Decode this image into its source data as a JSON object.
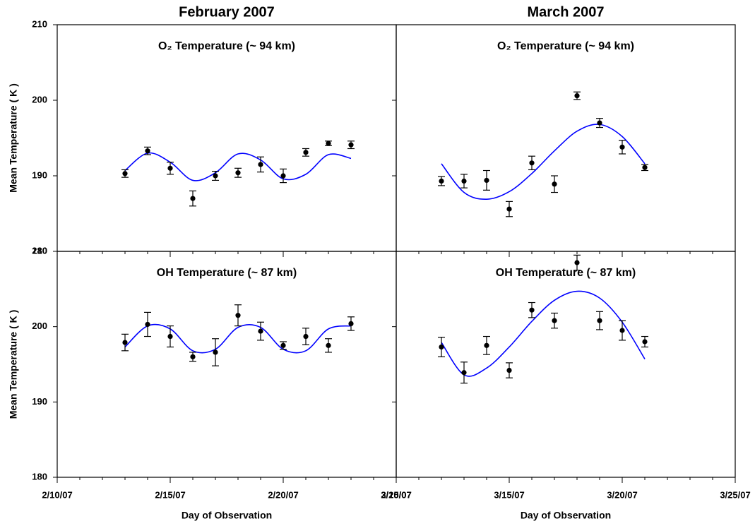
{
  "chart_data": [
    {
      "type": "scatter",
      "header": "February 2007",
      "title": "O₂ Temperature (~ 94 km)",
      "ylabel": "Mean Temperature ( K )",
      "x": [
        "2/13/07",
        "2/14/07",
        "2/15/07",
        "2/16/07",
        "2/17/07",
        "2/18/07",
        "2/19/07",
        "2/20/07",
        "2/21/07",
        "2/22/07",
        "2/23/07"
      ],
      "values": [
        190.3,
        193.3,
        191.0,
        187.0,
        190.0,
        190.4,
        191.5,
        190.0,
        193.1,
        194.3,
        194.1
      ],
      "errors": [
        0.5,
        0.5,
        0.8,
        1.0,
        0.6,
        0.6,
        1.0,
        0.9,
        0.5,
        0.3,
        0.5
      ],
      "fit": {
        "color": "#0000ff",
        "x": [
          "2/13/07",
          "2/14/07",
          "2/15/07",
          "2/16/07",
          "2/17/07",
          "2/18/07",
          "2/19/07",
          "2/20/07",
          "2/21/07",
          "2/22/07",
          "2/23/07"
        ],
        "values": [
          190.7,
          193.0,
          191.8,
          189.4,
          190.4,
          192.9,
          192.1,
          189.6,
          190.2,
          192.8,
          192.3
        ]
      },
      "xlim": [
        "2/10/07",
        "2/25/07"
      ],
      "xticks": [
        "2/10/07",
        "2/15/07",
        "2/20/07",
        "2/25/07"
      ],
      "show_xtick_labels": false,
      "ylim": [
        180,
        210
      ],
      "yticks": [
        180,
        190,
        200,
        210
      ],
      "show_ytick_labels": true,
      "color": "#000000"
    },
    {
      "type": "scatter",
      "header": "March 2007",
      "title": "O₂ Temperature (~ 94 km)",
      "x": [
        "3/12/07",
        "3/13/07",
        "3/14/07",
        "3/15/07",
        "3/16/07",
        "3/17/07",
        "3/18/07",
        "3/19/07",
        "3/20/07",
        "3/21/07"
      ],
      "values": [
        189.3,
        189.3,
        189.4,
        185.6,
        191.7,
        188.9,
        200.6,
        197.0,
        193.8,
        191.1
      ],
      "errors": [
        0.6,
        0.9,
        1.3,
        1.0,
        0.9,
        1.1,
        0.5,
        0.6,
        0.9,
        0.4
      ],
      "fit": {
        "color": "#0000ff",
        "x": [
          "3/12/07",
          "3/13/07",
          "3/14/07",
          "3/15/07",
          "3/16/07",
          "3/17/07",
          "3/18/07",
          "3/19/07",
          "3/20/07",
          "3/21/07"
        ],
        "values": [
          191.6,
          187.8,
          186.9,
          187.9,
          190.3,
          193.3,
          195.9,
          196.8,
          195.2,
          191.6
        ]
      },
      "xlim": [
        "3/10/07",
        "3/25/07"
      ],
      "xticks": [
        "3/10/07",
        "3/15/07",
        "3/20/07",
        "3/25/07"
      ],
      "show_xtick_labels": false,
      "ylim": [
        180,
        210
      ],
      "yticks": [
        180,
        190,
        200,
        210
      ],
      "show_ytick_labels": false,
      "color": "#000000"
    },
    {
      "type": "scatter",
      "title": "OH Temperature (~ 87 km)",
      "ylabel": "Mean Temperature ( K )",
      "xlabel": "Day of Observation",
      "x": [
        "2/13/07",
        "2/14/07",
        "2/15/07",
        "2/16/07",
        "2/17/07",
        "2/18/07",
        "2/19/07",
        "2/20/07",
        "2/21/07",
        "2/22/07",
        "2/23/07"
      ],
      "values": [
        197.9,
        200.3,
        198.7,
        196.0,
        196.6,
        201.5,
        199.4,
        197.5,
        198.7,
        197.5,
        200.4
      ],
      "errors": [
        1.1,
        1.6,
        1.4,
        0.6,
        1.8,
        1.4,
        1.2,
        0.5,
        1.1,
        0.9,
        0.9
      ],
      "fit": {
        "color": "#0000ff",
        "x": [
          "2/13/07",
          "2/14/07",
          "2/15/07",
          "2/16/07",
          "2/17/07",
          "2/18/07",
          "2/19/07",
          "2/20/07",
          "2/21/07",
          "2/22/07",
          "2/23/07"
        ],
        "values": [
          197.3,
          200.1,
          199.7,
          196.8,
          197.0,
          199.9,
          199.9,
          197.0,
          196.8,
          199.7,
          200.1
        ]
      },
      "xlim": [
        "2/10/07",
        "2/25/07"
      ],
      "xticks": [
        "2/10/07",
        "2/15/07",
        "2/20/07",
        "2/25/07"
      ],
      "show_xtick_labels": true,
      "ylim": [
        180,
        210
      ],
      "yticks": [
        180,
        190,
        200,
        210
      ],
      "show_ytick_labels": true,
      "color": "#000000"
    },
    {
      "type": "scatter",
      "title": "OH Temperature (~ 87 km)",
      "xlabel": "Day of Observation",
      "x": [
        "3/12/07",
        "3/13/07",
        "3/14/07",
        "3/15/07",
        "3/16/07",
        "3/17/07",
        "3/18/07",
        "3/19/07",
        "3/20/07",
        "3/21/07"
      ],
      "values": [
        197.3,
        193.9,
        197.5,
        194.2,
        202.2,
        200.8,
        208.5,
        200.8,
        199.5,
        198.0
      ],
      "errors": [
        1.3,
        1.4,
        1.2,
        1.0,
        1.0,
        1.0,
        1.0,
        1.2,
        1.3,
        0.7
      ],
      "fit": {
        "color": "#0000ff",
        "x": [
          "3/12/07",
          "3/13/07",
          "3/14/07",
          "3/15/07",
          "3/16/07",
          "3/17/07",
          "3/18/07",
          "3/19/07",
          "3/20/07",
          "3/21/07"
        ],
        "values": [
          197.9,
          193.6,
          194.5,
          197.3,
          200.7,
          203.5,
          204.7,
          203.8,
          200.6,
          195.7
        ]
      },
      "xlim": [
        "3/10/07",
        "3/25/07"
      ],
      "xticks": [
        "3/10/07",
        "3/15/07",
        "3/20/07",
        "3/25/07"
      ],
      "show_xtick_labels": true,
      "ylim": [
        180,
        210
      ],
      "yticks": [
        180,
        190,
        200,
        210
      ],
      "show_ytick_labels": false,
      "color": "#000000"
    }
  ]
}
